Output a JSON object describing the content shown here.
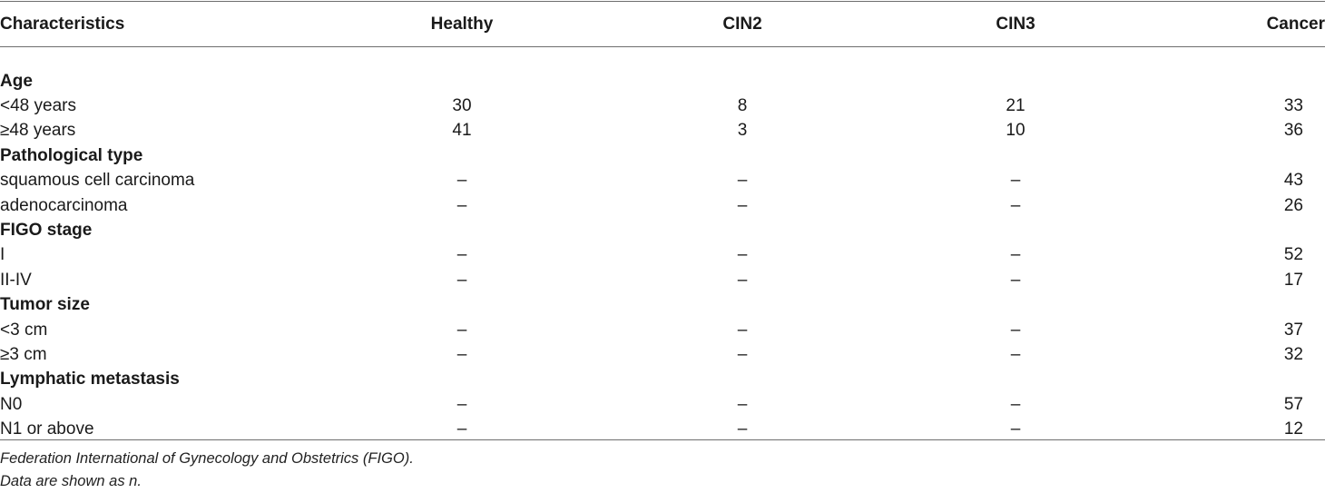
{
  "table": {
    "headers": [
      "Characteristics",
      "Healthy",
      "CIN2",
      "CIN3",
      "Cancer"
    ],
    "rows": [
      {
        "section": true,
        "label": "Age"
      },
      {
        "section": false,
        "label": "<48 years",
        "healthy": "30",
        "cin2": "8",
        "cin3": "21",
        "cancer": "33"
      },
      {
        "section": false,
        "label": "≥48 years",
        "healthy": "41",
        "cin2": "3",
        "cin3": "10",
        "cancer": "36"
      },
      {
        "section": true,
        "label": "Pathological type"
      },
      {
        "section": false,
        "label": "squamous cell carcinoma",
        "healthy": "–",
        "cin2": "–",
        "cin3": "–",
        "cancer": "43"
      },
      {
        "section": false,
        "label": "adenocarcinoma",
        "healthy": "–",
        "cin2": "–",
        "cin3": "–",
        "cancer": "26"
      },
      {
        "section": true,
        "label": "FIGO stage"
      },
      {
        "section": false,
        "label": "I",
        "healthy": "–",
        "cin2": "–",
        "cin3": "–",
        "cancer": "52"
      },
      {
        "section": false,
        "label": "II-IV",
        "healthy": "–",
        "cin2": "–",
        "cin3": "–",
        "cancer": "17"
      },
      {
        "section": true,
        "label": "Tumor size"
      },
      {
        "section": false,
        "label": "<3 cm",
        "healthy": "–",
        "cin2": "–",
        "cin3": "–",
        "cancer": "37"
      },
      {
        "section": false,
        "label": "≥3 cm",
        "healthy": "–",
        "cin2": "–",
        "cin3": "–",
        "cancer": "32"
      },
      {
        "section": true,
        "label": "Lymphatic metastasis"
      },
      {
        "section": false,
        "label": "N0",
        "healthy": "–",
        "cin2": "–",
        "cin3": "–",
        "cancer": "57"
      },
      {
        "section": false,
        "label": "N1 or above",
        "healthy": "–",
        "cin2": "–",
        "cin3": "–",
        "cancer": "12"
      }
    ]
  },
  "footnotes": [
    "Federation International of Gynecology and Obstetrics (FIGO).",
    "Data are shown as n."
  ]
}
